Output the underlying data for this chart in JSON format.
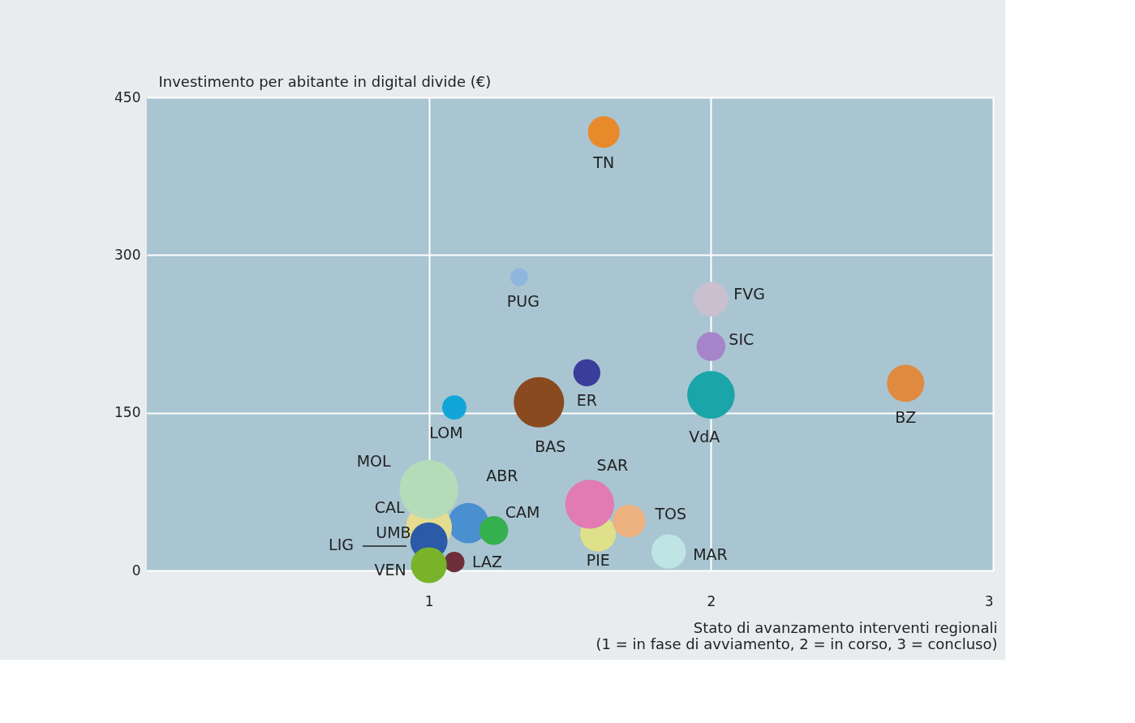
{
  "chart_data": {
    "type": "bubble",
    "xlabel": "Stato di avanzamento interventi regionali\n(1 = in fase di avviamento, 2 = in corso, 3 = concluso)",
    "ylabel": "Investimento per abitante in digital divide (€)",
    "xlim": [
      0,
      3
    ],
    "xticks": [
      1,
      2,
      3
    ],
    "ylim": [
      0,
      450
    ],
    "yticks": [
      0,
      150,
      300,
      450
    ],
    "grid": true,
    "legend": false,
    "annotations": [
      "LIG"
    ],
    "series": [
      {
        "name": "TN",
        "color": "#e8892a",
        "x": [
          1.62
        ],
        "values": [
          417
        ],
        "sizes": [
          0.29
        ]
      },
      {
        "name": "PUG",
        "color": "#8fb6de",
        "x": [
          1.32
        ],
        "values": [
          279
        ],
        "sizes": [
          0.09
        ]
      },
      {
        "name": "FVG",
        "color": "#c9bfcf",
        "x": [
          2.0
        ],
        "values": [
          258
        ],
        "sizes": [
          0.34
        ]
      },
      {
        "name": "SIC",
        "color": "#a584c9",
        "x": [
          2.0
        ],
        "values": [
          213
        ],
        "sizes": [
          0.24
        ]
      },
      {
        "name": "ER",
        "color": "#3a3d9a",
        "x": [
          1.56
        ],
        "values": [
          188
        ],
        "sizes": [
          0.21
        ]
      },
      {
        "name": "BZ",
        "color": "#e08a3f",
        "x": [
          2.69
        ],
        "values": [
          178
        ],
        "sizes": [
          0.4
        ]
      },
      {
        "name": "VdA",
        "color": "#1aa5a8",
        "x": [
          2.0
        ],
        "values": [
          167
        ],
        "sizes": [
          0.65
        ]
      },
      {
        "name": "LOM",
        "color": "#12a6d8",
        "x": [
          1.09
        ],
        "values": [
          155
        ],
        "sizes": [
          0.17
        ]
      },
      {
        "name": "BAS",
        "color": "#8a4a1f",
        "x": [
          1.39
        ],
        "values": [
          160
        ],
        "sizes": [
          0.73
        ]
      },
      {
        "name": "ABR",
        "color": "#4a8fd0",
        "x": [
          1.14
        ],
        "values": [
          45
        ],
        "sizes": [
          0.47
        ]
      },
      {
        "name": "CAL",
        "color": "#e6dc8f",
        "x": [
          1.0
        ],
        "values": [
          41
        ],
        "sizes": [
          0.61
        ]
      },
      {
        "name": "MOL",
        "color": "#b5dcb8",
        "x": [
          1.0
        ],
        "values": [
          77
        ],
        "sizes": [
          1
        ]
      },
      {
        "name": "CAM",
        "color": "#35b04f",
        "x": [
          1.23
        ],
        "values": [
          38
        ],
        "sizes": [
          0.24
        ]
      },
      {
        "name": "LAZ",
        "color": "#6e2e3a",
        "x": [
          1.09
        ],
        "values": [
          8
        ],
        "sizes": [
          0.12
        ]
      },
      {
        "name": "UMB",
        "color": "#2a5aa8",
        "x": [
          1.0
        ],
        "values": [
          28
        ],
        "sizes": [
          0.4
        ]
      },
      {
        "name": "VEN",
        "color": "#78b32a",
        "x": [
          1.0
        ],
        "values": [
          5
        ],
        "sizes": [
          0.37
        ]
      },
      {
        "name": "PIE",
        "color": "#dfe08a",
        "x": [
          1.6
        ],
        "values": [
          35
        ],
        "sizes": [
          0.37
        ]
      },
      {
        "name": "SAR",
        "color": "#e27ab3",
        "x": [
          1.57
        ],
        "values": [
          63
        ],
        "sizes": [
          0.69
        ]
      },
      {
        "name": "TOS",
        "color": "#edb07f",
        "x": [
          1.71
        ],
        "values": [
          47
        ],
        "sizes": [
          0.31
        ]
      },
      {
        "name": "MAR",
        "color": "#bfe4e6",
        "x": [
          1.85
        ],
        "values": [
          18
        ],
        "sizes": [
          0.34
        ]
      }
    ]
  }
}
